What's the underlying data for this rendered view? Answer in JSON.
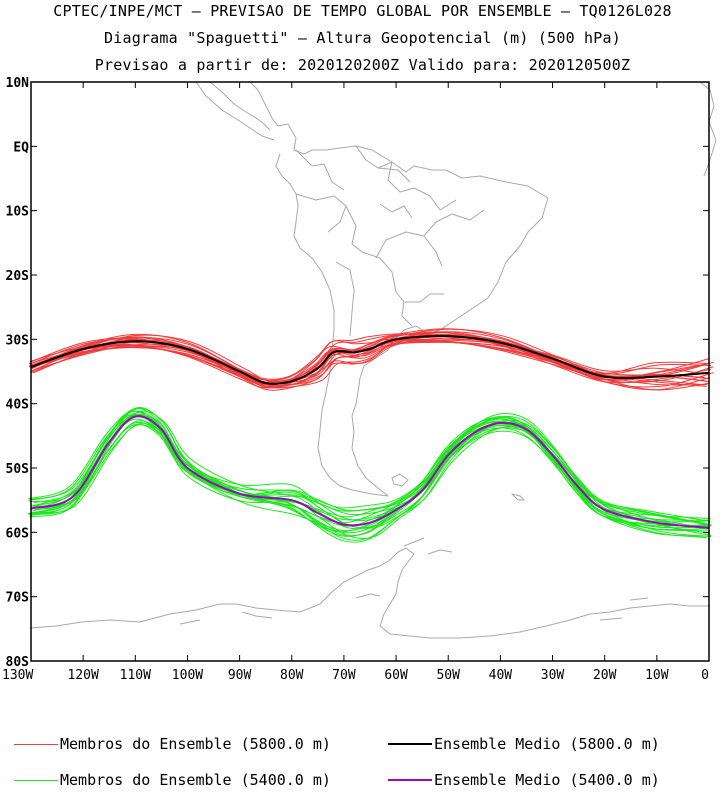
{
  "titles": {
    "line1": "CPTEC/INPE/MCT — PREVISAO DE TEMPO GLOBAL POR ENSEMBLE — TQ0126L028",
    "line2": "Diagrama \"Spaguetti\" — Altura Geopotencial (m) (500 hPa)",
    "line3": "Previsao a partir de: 2020120200Z  Valido para: 2020120500Z"
  },
  "map": {
    "lon_range": [
      -130,
      0
    ],
    "lat_range": [
      -80,
      10
    ],
    "lat_ticks": [
      {
        "lat": 10,
        "label": "10N"
      },
      {
        "lat": 0,
        "label": "EQ"
      },
      {
        "lat": -10,
        "label": "10S"
      },
      {
        "lat": -20,
        "label": "20S"
      },
      {
        "lat": -30,
        "label": "30S"
      },
      {
        "lat": -40,
        "label": "40S"
      },
      {
        "lat": -50,
        "label": "50S"
      },
      {
        "lat": -60,
        "label": "60S"
      },
      {
        "lat": -70,
        "label": "70S"
      },
      {
        "lat": -80,
        "label": "80S"
      }
    ],
    "lon_ticks": [
      {
        "lon": -130,
        "label": "130W"
      },
      {
        "lon": -120,
        "label": "120W"
      },
      {
        "lon": -110,
        "label": "110W"
      },
      {
        "lon": -100,
        "label": "100W"
      },
      {
        "lon": -90,
        "label": "90W"
      },
      {
        "lon": -80,
        "label": "80W"
      },
      {
        "lon": -70,
        "label": "70W"
      },
      {
        "lon": -60,
        "label": "60W"
      },
      {
        "lon": -50,
        "label": "50W"
      },
      {
        "lon": -40,
        "label": "40W"
      },
      {
        "lon": -30,
        "label": "30W"
      },
      {
        "lon": -20,
        "label": "20W"
      },
      {
        "lon": -10,
        "label": "10W"
      },
      {
        "lon": 0,
        "label": "0"
      }
    ]
  },
  "contours": {
    "c5800_mean": [
      [
        -130,
        -34.3
      ],
      [
        -120,
        -31.5
      ],
      [
        -110,
        -30.3
      ],
      [
        -100,
        -31.5
      ],
      [
        -90,
        -35
      ],
      [
        -85,
        -36.8
      ],
      [
        -80,
        -36.5
      ],
      [
        -75,
        -34.5
      ],
      [
        -72,
        -32
      ],
      [
        -68,
        -32
      ],
      [
        -65,
        -31.5
      ],
      [
        -60,
        -30
      ],
      [
        -50,
        -29.5
      ],
      [
        -40,
        -30.5
      ],
      [
        -30,
        -33
      ],
      [
        -20,
        -35.8
      ],
      [
        -10,
        -35.8
      ],
      [
        0,
        -35.2
      ]
    ],
    "c5400_mean": [
      [
        -130,
        -56.3
      ],
      [
        -122,
        -54.5
      ],
      [
        -115,
        -46
      ],
      [
        -110,
        -42
      ],
      [
        -105,
        -44
      ],
      [
        -100,
        -50
      ],
      [
        -90,
        -54
      ],
      [
        -80,
        -55
      ],
      [
        -75,
        -57
      ],
      [
        -70,
        -58.8
      ],
      [
        -65,
        -58.5
      ],
      [
        -60,
        -56.5
      ],
      [
        -55,
        -53.5
      ],
      [
        -50,
        -48
      ],
      [
        -45,
        -44.5
      ],
      [
        -40,
        -43
      ],
      [
        -35,
        -44
      ],
      [
        -30,
        -48
      ],
      [
        -25,
        -53
      ],
      [
        -20,
        -56.5
      ],
      [
        -10,
        -58.5
      ],
      [
        0,
        -59.3
      ]
    ],
    "c5800_member_count": 20,
    "c5400_member_count": 20
  },
  "colors": {
    "member_5800": "#f03c3c",
    "mean_5800": "#000000",
    "member_5400": "#1ee61e",
    "mean_5400": "#a000c8",
    "coast": "#a9a9a9"
  },
  "legend": [
    {
      "label": "Membros do Ensemble (5800.0 m)",
      "color": "#f03c3c"
    },
    {
      "label": "Ensemble Medio (5800.0 m)",
      "color": "#000000"
    },
    {
      "label": "Membros do Ensemble (5400.0 m)",
      "color": "#1ee61e"
    },
    {
      "label": "Ensemble Medio (5400.0 m)",
      "color": "#a000c8"
    }
  ]
}
